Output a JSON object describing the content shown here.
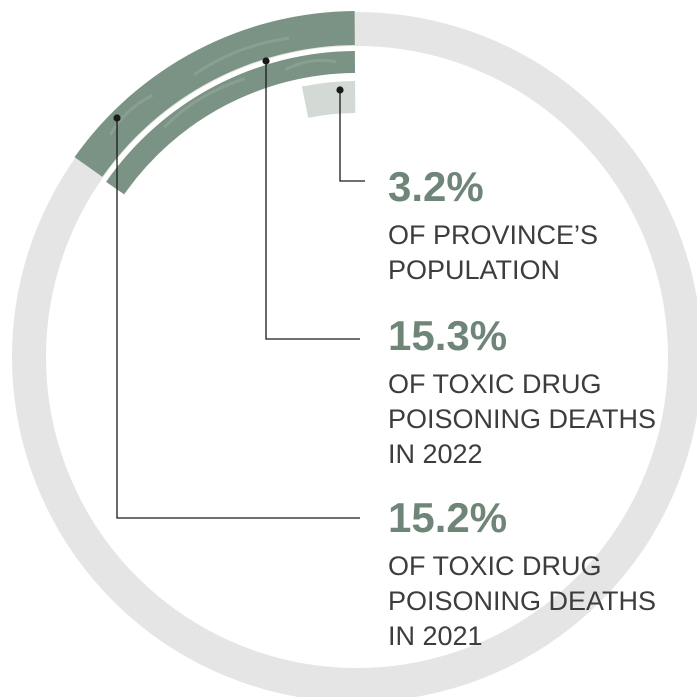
{
  "chart_data": {
    "type": "pie",
    "series": [
      {
        "value": 15.2,
        "percent_label": "15.2%",
        "description_lines": [
          "OF TOXIC DRUG",
          "POISONING DEATHS",
          "IN 2021"
        ]
      },
      {
        "value": 15.3,
        "percent_label": "15.3%",
        "description_lines": [
          "OF TOXIC DRUG",
          "POISONING DEATHS",
          "IN 2022"
        ]
      },
      {
        "value": 3.2,
        "percent_label": "3.2%",
        "description_lines": [
          "OF PROVINCE’S",
          "POPULATION"
        ]
      }
    ],
    "colors": {
      "background_ring": "#e4e5e4",
      "deaths_arc": "#7a9384",
      "population_arc": "#d3dad5",
      "percent_text": "#6e8578",
      "description_text": "#3d3d3d",
      "leader_line": "#1a1a1a"
    }
  }
}
